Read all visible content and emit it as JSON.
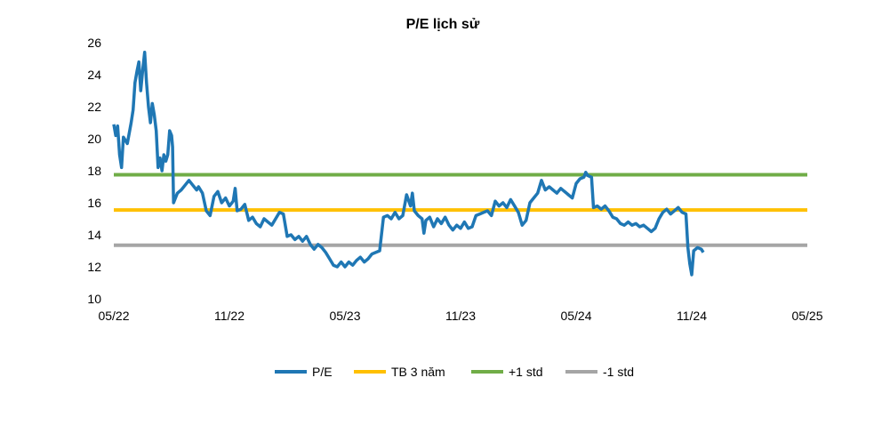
{
  "chart_data": {
    "type": "line",
    "title": "P/E lịch sử",
    "xlabel": "",
    "ylabel": "",
    "ylim": [
      10,
      26
    ],
    "yticks": [
      "10",
      "12",
      "14",
      "16",
      "18",
      "20",
      "22",
      "24",
      "26"
    ],
    "xticks": [
      "05/22",
      "11/22",
      "05/23",
      "11/23",
      "05/24",
      "11/24",
      "05/25"
    ],
    "x_unit": "months since 05/22",
    "legend_position": "bottom",
    "series": [
      {
        "name": "P/E",
        "color": "#1F77B4",
        "points": [
          [
            0.0,
            20.9
          ],
          [
            0.1,
            20.2
          ],
          [
            0.2,
            20.8
          ],
          [
            0.3,
            19.0
          ],
          [
            0.4,
            18.2
          ],
          [
            0.5,
            20.1
          ],
          [
            0.7,
            19.7
          ],
          [
            0.9,
            21.0
          ],
          [
            1.0,
            21.8
          ],
          [
            1.1,
            23.5
          ],
          [
            1.2,
            24.2
          ],
          [
            1.3,
            24.8
          ],
          [
            1.4,
            23.0
          ],
          [
            1.5,
            24.3
          ],
          [
            1.6,
            25.4
          ],
          [
            1.7,
            23.5
          ],
          [
            1.8,
            22.0
          ],
          [
            1.9,
            21.0
          ],
          [
            2.0,
            22.2
          ],
          [
            2.1,
            21.5
          ],
          [
            2.2,
            20.5
          ],
          [
            2.3,
            18.2
          ],
          [
            2.4,
            18.8
          ],
          [
            2.5,
            18.0
          ],
          [
            2.6,
            19.0
          ],
          [
            2.7,
            18.6
          ],
          [
            2.8,
            19.0
          ],
          [
            2.9,
            20.5
          ],
          [
            3.0,
            20.2
          ],
          [
            3.05,
            19.5
          ],
          [
            3.1,
            16.0
          ],
          [
            3.3,
            16.6
          ],
          [
            3.5,
            16.8
          ],
          [
            3.7,
            17.1
          ],
          [
            3.9,
            17.4
          ],
          [
            4.1,
            17.1
          ],
          [
            4.3,
            16.8
          ],
          [
            4.4,
            17.0
          ],
          [
            4.6,
            16.6
          ],
          [
            4.8,
            15.5
          ],
          [
            5.0,
            15.2
          ],
          [
            5.2,
            16.4
          ],
          [
            5.4,
            16.7
          ],
          [
            5.6,
            16.0
          ],
          [
            5.8,
            16.3
          ],
          [
            6.0,
            15.8
          ],
          [
            6.2,
            16.1
          ],
          [
            6.3,
            16.9
          ],
          [
            6.4,
            15.5
          ],
          [
            6.6,
            15.6
          ],
          [
            6.8,
            15.9
          ],
          [
            7.0,
            14.9
          ],
          [
            7.2,
            15.1
          ],
          [
            7.4,
            14.7
          ],
          [
            7.6,
            14.5
          ],
          [
            7.8,
            15.0
          ],
          [
            8.0,
            14.8
          ],
          [
            8.2,
            14.6
          ],
          [
            8.4,
            15.0
          ],
          [
            8.6,
            15.4
          ],
          [
            8.8,
            15.3
          ],
          [
            9.0,
            13.9
          ],
          [
            9.2,
            14.0
          ],
          [
            9.4,
            13.7
          ],
          [
            9.6,
            13.9
          ],
          [
            9.8,
            13.6
          ],
          [
            10.0,
            13.9
          ],
          [
            10.2,
            13.4
          ],
          [
            10.4,
            13.1
          ],
          [
            10.6,
            13.4
          ],
          [
            10.8,
            13.2
          ],
          [
            11.0,
            12.9
          ],
          [
            11.2,
            12.5
          ],
          [
            11.4,
            12.1
          ],
          [
            11.6,
            12.0
          ],
          [
            11.8,
            12.3
          ],
          [
            12.0,
            12.0
          ],
          [
            12.2,
            12.3
          ],
          [
            12.4,
            12.1
          ],
          [
            12.6,
            12.4
          ],
          [
            12.8,
            12.6
          ],
          [
            13.0,
            12.3
          ],
          [
            13.2,
            12.5
          ],
          [
            13.4,
            12.8
          ],
          [
            13.6,
            12.9
          ],
          [
            13.8,
            13.0
          ],
          [
            14.0,
            15.1
          ],
          [
            14.2,
            15.2
          ],
          [
            14.4,
            15.0
          ],
          [
            14.6,
            15.4
          ],
          [
            14.8,
            15.0
          ],
          [
            15.0,
            15.2
          ],
          [
            15.2,
            16.5
          ],
          [
            15.4,
            15.8
          ],
          [
            15.5,
            16.6
          ],
          [
            15.6,
            15.5
          ],
          [
            15.8,
            15.2
          ],
          [
            16.0,
            15.0
          ],
          [
            16.1,
            14.1
          ],
          [
            16.2,
            14.9
          ],
          [
            16.4,
            15.1
          ],
          [
            16.6,
            14.5
          ],
          [
            16.8,
            15.0
          ],
          [
            17.0,
            14.7
          ],
          [
            17.2,
            15.1
          ],
          [
            17.4,
            14.6
          ],
          [
            17.6,
            14.3
          ],
          [
            17.8,
            14.6
          ],
          [
            18.0,
            14.4
          ],
          [
            18.2,
            14.8
          ],
          [
            18.4,
            14.4
          ],
          [
            18.6,
            14.5
          ],
          [
            18.8,
            15.2
          ],
          [
            19.0,
            15.3
          ],
          [
            19.2,
            15.4
          ],
          [
            19.4,
            15.5
          ],
          [
            19.6,
            15.2
          ],
          [
            19.8,
            16.1
          ],
          [
            20.0,
            15.8
          ],
          [
            20.2,
            16.0
          ],
          [
            20.4,
            15.7
          ],
          [
            20.6,
            16.2
          ],
          [
            20.8,
            15.8
          ],
          [
            21.0,
            15.4
          ],
          [
            21.2,
            14.6
          ],
          [
            21.4,
            14.9
          ],
          [
            21.6,
            16.0
          ],
          [
            21.8,
            16.3
          ],
          [
            22.0,
            16.6
          ],
          [
            22.2,
            17.4
          ],
          [
            22.4,
            16.8
          ],
          [
            22.6,
            17.0
          ],
          [
            22.8,
            16.8
          ],
          [
            23.0,
            16.6
          ],
          [
            23.2,
            16.9
          ],
          [
            23.4,
            16.7
          ],
          [
            23.6,
            16.5
          ],
          [
            23.8,
            16.3
          ],
          [
            24.0,
            17.2
          ],
          [
            24.2,
            17.5
          ],
          [
            24.4,
            17.6
          ],
          [
            24.5,
            17.9
          ],
          [
            24.6,
            17.7
          ],
          [
            24.8,
            17.6
          ],
          [
            24.9,
            15.7
          ],
          [
            25.1,
            15.8
          ],
          [
            25.3,
            15.6
          ],
          [
            25.5,
            15.8
          ],
          [
            25.7,
            15.5
          ],
          [
            25.9,
            15.1
          ],
          [
            26.1,
            15.0
          ],
          [
            26.3,
            14.7
          ],
          [
            26.5,
            14.6
          ],
          [
            26.7,
            14.8
          ],
          [
            26.9,
            14.6
          ],
          [
            27.1,
            14.7
          ],
          [
            27.3,
            14.5
          ],
          [
            27.5,
            14.6
          ],
          [
            27.7,
            14.4
          ],
          [
            27.9,
            14.2
          ],
          [
            28.1,
            14.4
          ],
          [
            28.3,
            15.0
          ],
          [
            28.5,
            15.4
          ],
          [
            28.7,
            15.6
          ],
          [
            28.9,
            15.3
          ],
          [
            29.1,
            15.5
          ],
          [
            29.3,
            15.7
          ],
          [
            29.5,
            15.4
          ],
          [
            29.7,
            15.3
          ],
          [
            29.8,
            13.2
          ],
          [
            29.9,
            12.2
          ],
          [
            30.0,
            11.5
          ],
          [
            30.1,
            13.0
          ],
          [
            30.3,
            13.2
          ],
          [
            30.5,
            13.1
          ],
          [
            30.6,
            12.9
          ]
        ]
      },
      {
        "name": "TB 3 năm",
        "color": "#FFC000",
        "value": 15.55
      },
      {
        "name": "+1 std",
        "color": "#70AD47",
        "value": 17.75
      },
      {
        "name": "-1 std",
        "color": "#A5A5A5",
        "value": 13.35
      }
    ]
  }
}
